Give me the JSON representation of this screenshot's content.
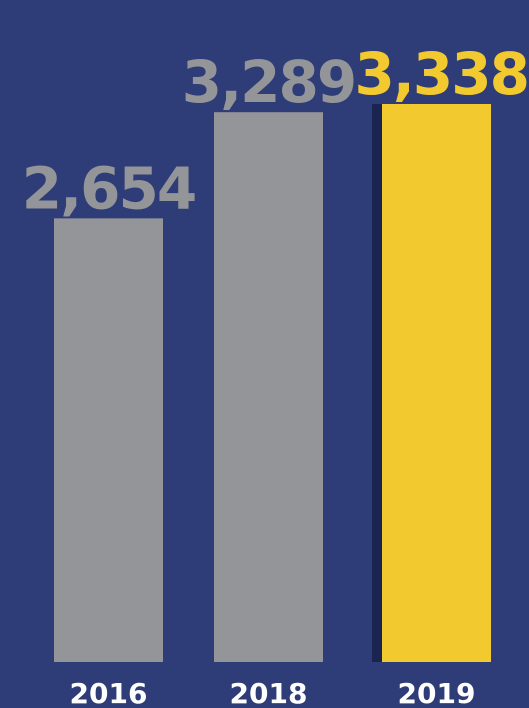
{
  "colors": {
    "background": "#2e3c78",
    "bar_default": "#939598",
    "bar_highlight": "#f2c92e",
    "shadow": "#1a2450",
    "axis_text": "#ffffff"
  },
  "chart_data": {
    "type": "bar",
    "categories": [
      "2016",
      "2018",
      "2019"
    ],
    "values": [
      2654,
      3289,
      3338
    ],
    "value_labels": [
      "2,654",
      "3,289",
      "3,338"
    ],
    "highlight_index": 2,
    "ylim": [
      0,
      3338
    ],
    "grid": false,
    "title": "",
    "xlabel": "",
    "ylabel": ""
  }
}
